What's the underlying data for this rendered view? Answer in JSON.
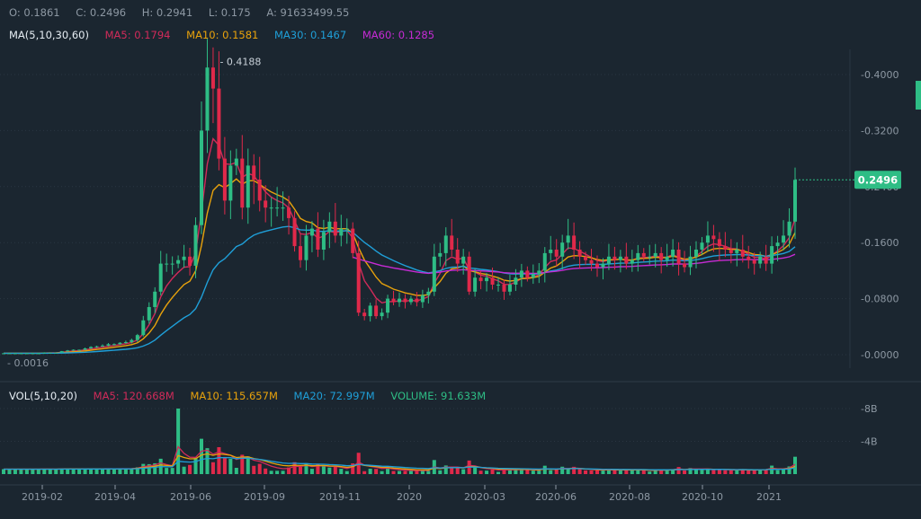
{
  "ohlc": {
    "open": "O: 0.1861",
    "close": "C: 0.2496",
    "high": "H: 0.2941",
    "low": "L: 0.175",
    "amount": "A: 91633499.55"
  },
  "ma_legend": {
    "title": "MA(5,10,30,60)",
    "ma5": "MA5: 0.1794",
    "ma10": "MA10: 0.1581",
    "ma30": "MA30: 0.1467",
    "ma60": "MA60: 0.1285"
  },
  "vol_legend": {
    "title": "VOL(5,10,20)",
    "ma5": "MA5: 120.668M",
    "ma10": "MA10: 115.657M",
    "ma20": "MA20: 72.997M",
    "volume": "VOLUME: 91.633M"
  },
  "colors": {
    "up": "#2ebd85",
    "down": "#e0294a",
    "ma5": "#d12b5a",
    "ma10": "#e8a20c",
    "ma30": "#1f9fd8",
    "ma60": "#c62bd4",
    "grid": "#2a3642",
    "text": "#8d98a3",
    "price_tag_bg": "#2ebd85"
  },
  "chart_data": {
    "type": "candlestick",
    "price_axis": {
      "ticks": [
        "0.4000",
        "0.3200",
        "0.2400",
        "0.1600",
        "0.0800",
        "0.0000"
      ],
      "tick_values": [
        0.4,
        0.32,
        0.24,
        0.16,
        0.08,
        0.0
      ]
    },
    "volume_axis": {
      "ticks": [
        "8B",
        "4B"
      ],
      "tick_values": [
        8,
        4
      ]
    },
    "x_ticks": [
      "2019-02",
      "2019-04",
      "2019-06",
      "2019-09",
      "2019-11",
      "2020",
      "2020-03",
      "2020-06",
      "2020-08",
      "2020-10",
      "2021"
    ],
    "max_label": "0.4188",
    "min_label": "0.0016",
    "last_price": "0.2496",
    "max_value": 0.4188,
    "min_value": 0.0016,
    "last_value": 0.2496,
    "closes": [
      0.002,
      0.002,
      0.002,
      0.002,
      0.002,
      0.002,
      0.002,
      0.003,
      0.003,
      0.003,
      0.005,
      0.006,
      0.007,
      0.007,
      0.009,
      0.011,
      0.012,
      0.013,
      0.015,
      0.015,
      0.017,
      0.018,
      0.021,
      0.028,
      0.049,
      0.068,
      0.09,
      0.13,
      0.13,
      0.13,
      0.135,
      0.14,
      0.127,
      0.185,
      0.32,
      0.41,
      0.38,
      0.28,
      0.22,
      0.27,
      0.28,
      0.21,
      0.27,
      0.25,
      0.22,
      0.21,
      0.21,
      0.21,
      0.21,
      0.195,
      0.155,
      0.135,
      0.17,
      0.18,
      0.15,
      0.175,
      0.19,
      0.17,
      0.18,
      0.18,
      0.145,
      0.06,
      0.055,
      0.07,
      0.055,
      0.06,
      0.08,
      0.075,
      0.08,
      0.075,
      0.08,
      0.075,
      0.085,
      0.09,
      0.14,
      0.145,
      0.17,
      0.15,
      0.13,
      0.14,
      0.09,
      0.11,
      0.105,
      0.11,
      0.1,
      0.1,
      0.09,
      0.1,
      0.11,
      0.12,
      0.11,
      0.115,
      0.12,
      0.145,
      0.15,
      0.14,
      0.16,
      0.17,
      0.15,
      0.14,
      0.135,
      0.13,
      0.125,
      0.13,
      0.14,
      0.135,
      0.14,
      0.13,
      0.135,
      0.145,
      0.14,
      0.14,
      0.145,
      0.135,
      0.14,
      0.15,
      0.13,
      0.125,
      0.14,
      0.15,
      0.16,
      0.17,
      0.165,
      0.155,
      0.15,
      0.145,
      0.15,
      0.14,
      0.135,
      0.13,
      0.14,
      0.13,
      0.155,
      0.16,
      0.17,
      0.19,
      0.2496
    ],
    "volume_ma_bands": [
      "MA5",
      "MA10",
      "MA20"
    ]
  }
}
